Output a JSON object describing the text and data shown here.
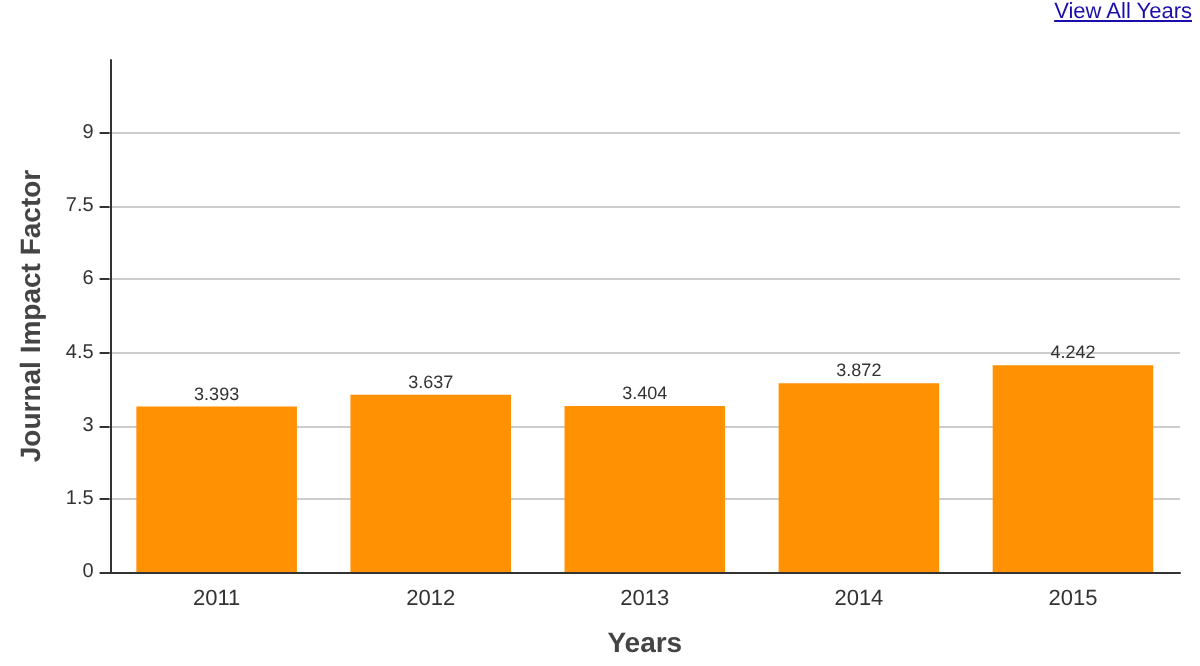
{
  "chart_data": {
    "type": "bar",
    "categories": [
      "2011",
      "2012",
      "2013",
      "2014",
      "2015"
    ],
    "values": [
      3.393,
      3.637,
      3.404,
      3.872,
      4.242
    ],
    "color": "#ff9102",
    "xlabel": "Years",
    "ylabel": "Journal Impact Factor",
    "ylim": [
      0,
      10.5
    ],
    "yticks": [
      0,
      1.5,
      3,
      4.5,
      6,
      7.5,
      9
    ],
    "grid": "y",
    "data_labels": true,
    "annotations": [
      "View All Years"
    ]
  }
}
